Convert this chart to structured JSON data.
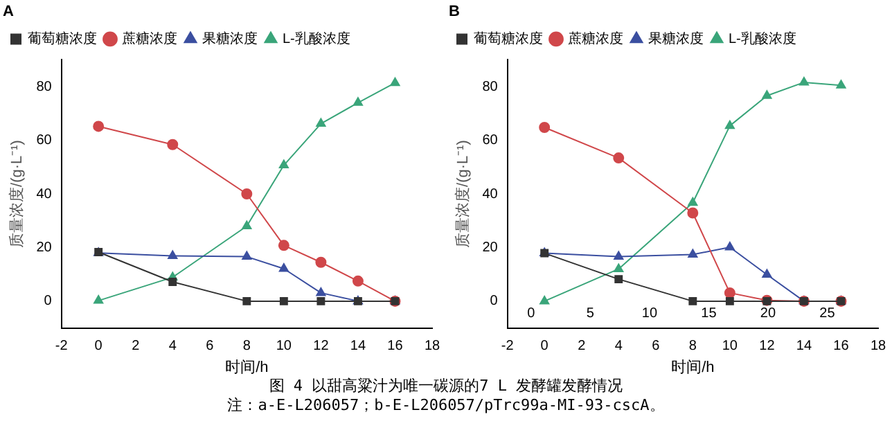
{
  "chart_data": [
    {
      "type": "line",
      "title": "A",
      "xlabel": "时间/h",
      "ylabel": "质量浓度/(g·L⁻¹)",
      "x": [
        0,
        4,
        8,
        10,
        12,
        14,
        16
      ],
      "xlim": [
        -2,
        18
      ],
      "xticks": [
        -2,
        0,
        2,
        4,
        6,
        8,
        10,
        12,
        14,
        16,
        18
      ],
      "ylim": [
        -10,
        90
      ],
      "yticks": [
        0,
        20,
        40,
        60,
        80
      ],
      "grid": false,
      "legend": "top left",
      "series": [
        {
          "name": "葡萄糖浓度",
          "color": "#333333",
          "marker": "square",
          "values": [
            18.3,
            7.2,
            0,
            0,
            0,
            0,
            0
          ]
        },
        {
          "name": "蔗糖浓度",
          "color": "#d0474a",
          "marker": "circle",
          "values": [
            65.2,
            58.4,
            40,
            20.8,
            14.5,
            7.5,
            0
          ]
        },
        {
          "name": "果糖浓度",
          "color": "#3b4fa0",
          "marker": "triangle",
          "values": [
            18,
            16.9,
            16.6,
            12.1,
            3.1,
            0,
            0
          ]
        },
        {
          "name": "L-乳酸浓度",
          "color": "#3aa57a",
          "marker": "triangle",
          "values": [
            0.2,
            8.9,
            28,
            50.7,
            66.2,
            74,
            81.4
          ]
        }
      ],
      "annotations": [
        "图 4  以甜高粱汁为唯一碳源的7 L 发酵罐发酵情况",
        "注：a-E-L206057；b-E-L206057/pTrc99a-MI-93-cscA。"
      ]
    },
    {
      "type": "line",
      "title": "B",
      "xlabel": "时间/h",
      "ylabel": "质量浓度/(g·L⁻¹)",
      "x": [
        0,
        4,
        8,
        10,
        12,
        14,
        16
      ],
      "xlim": [
        -2,
        18
      ],
      "xticks": [
        -2,
        0,
        2,
        4,
        6,
        8,
        10,
        12,
        14,
        16,
        18
      ],
      "x2lim": [
        -2,
        29.3
      ],
      "x2ticks": [
        0,
        5,
        10,
        15,
        20,
        25
      ],
      "ylim": [
        -10,
        90
      ],
      "yticks": [
        0,
        20,
        40,
        60,
        80
      ],
      "grid": false,
      "legend": "top left",
      "series": [
        {
          "name": "葡萄糖浓度",
          "color": "#333333",
          "marker": "square",
          "values": [
            17.9,
            8.2,
            0,
            0,
            0,
            0,
            0
          ]
        },
        {
          "name": "蔗糖浓度",
          "color": "#d0474a",
          "marker": "circle",
          "values": [
            64.8,
            53.4,
            32.9,
            3.1,
            0.3,
            0,
            0
          ]
        },
        {
          "name": "果糖浓度",
          "color": "#3b4fa0",
          "marker": "triangle",
          "values": [
            17.9,
            16.6,
            17.4,
            20.1,
            9.9,
            0,
            0
          ]
        },
        {
          "name": "L-乳酸浓度",
          "color": "#3aa57a",
          "marker": "triangle",
          "values": [
            0,
            12,
            36.7,
            65.4,
            76.6,
            81.6,
            80.5
          ]
        }
      ]
    }
  ]
}
